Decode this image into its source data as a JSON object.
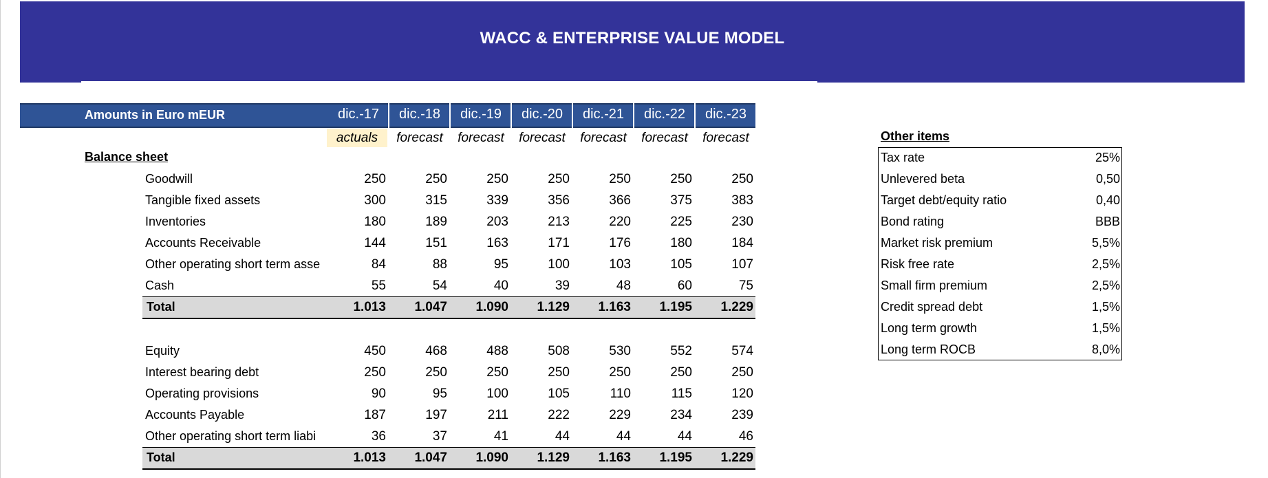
{
  "title": "WACC & ENTERPRISE VALUE MODEL",
  "header": {
    "label": "Amounts in Euro mEUR",
    "years": [
      "dic.-17",
      "dic.-18",
      "dic.-19",
      "dic.-20",
      "dic.-21",
      "dic.-22",
      "dic.-23"
    ],
    "types": [
      "actuals",
      "forecast",
      "forecast",
      "forecast",
      "forecast",
      "forecast",
      "forecast"
    ]
  },
  "balance_sheet": {
    "title": "Balance sheet",
    "assets": [
      {
        "label": "Goodwill",
        "values": [
          "250",
          "250",
          "250",
          "250",
          "250",
          "250",
          "250"
        ]
      },
      {
        "label": "Tangible fixed assets",
        "values": [
          "300",
          "315",
          "339",
          "356",
          "366",
          "375",
          "383"
        ]
      },
      {
        "label": "Inventories",
        "values": [
          "180",
          "189",
          "203",
          "213",
          "220",
          "225",
          "230"
        ]
      },
      {
        "label": "Accounts Receivable",
        "values": [
          "144",
          "151",
          "163",
          "171",
          "176",
          "180",
          "184"
        ]
      },
      {
        "label": "Other operating short term asse",
        "values": [
          "84",
          "88",
          "95",
          "100",
          "103",
          "105",
          "107"
        ]
      },
      {
        "label": "Cash",
        "values": [
          "55",
          "54",
          "40",
          "39",
          "48",
          "60",
          "75"
        ]
      }
    ],
    "assets_total": {
      "label": "Total",
      "values": [
        "1.013",
        "1.047",
        "1.090",
        "1.129",
        "1.163",
        "1.195",
        "1.229"
      ]
    },
    "liabilities": [
      {
        "label": "Equity",
        "values": [
          "450",
          "468",
          "488",
          "508",
          "530",
          "552",
          "574"
        ]
      },
      {
        "label": "Interest bearing debt",
        "values": [
          "250",
          "250",
          "250",
          "250",
          "250",
          "250",
          "250"
        ]
      },
      {
        "label": "Operating provisions",
        "values": [
          "90",
          "95",
          "100",
          "105",
          "110",
          "115",
          "120"
        ]
      },
      {
        "label": "Accounts Payable",
        "values": [
          "187",
          "197",
          "211",
          "222",
          "229",
          "234",
          "239"
        ]
      },
      {
        "label": "Other operating short term liabi",
        "values": [
          "36",
          "37",
          "41",
          "44",
          "44",
          "44",
          "46"
        ]
      }
    ],
    "liabilities_total": {
      "label": "Total",
      "values": [
        "1.013",
        "1.047",
        "1.090",
        "1.129",
        "1.163",
        "1.195",
        "1.229"
      ]
    }
  },
  "other_items": {
    "title": "Other items",
    "items": [
      {
        "label": "Tax rate",
        "value": "25%"
      },
      {
        "label": "Unlevered beta",
        "value": "0,50"
      },
      {
        "label": "Target debt/equity ratio",
        "value": "0,40"
      },
      {
        "label": "Bond rating",
        "value": "BBB"
      },
      {
        "label": "Market risk premium",
        "value": "5,5%"
      },
      {
        "label": "Risk free rate",
        "value": "2,5%"
      },
      {
        "label": "Small firm premium",
        "value": "2,5%"
      },
      {
        "label": "Credit spread debt",
        "value": "1,5%"
      },
      {
        "label": "Long term growth",
        "value": "1,5%"
      },
      {
        "label": "Long term ROCB",
        "value": "8,0%"
      }
    ]
  }
}
